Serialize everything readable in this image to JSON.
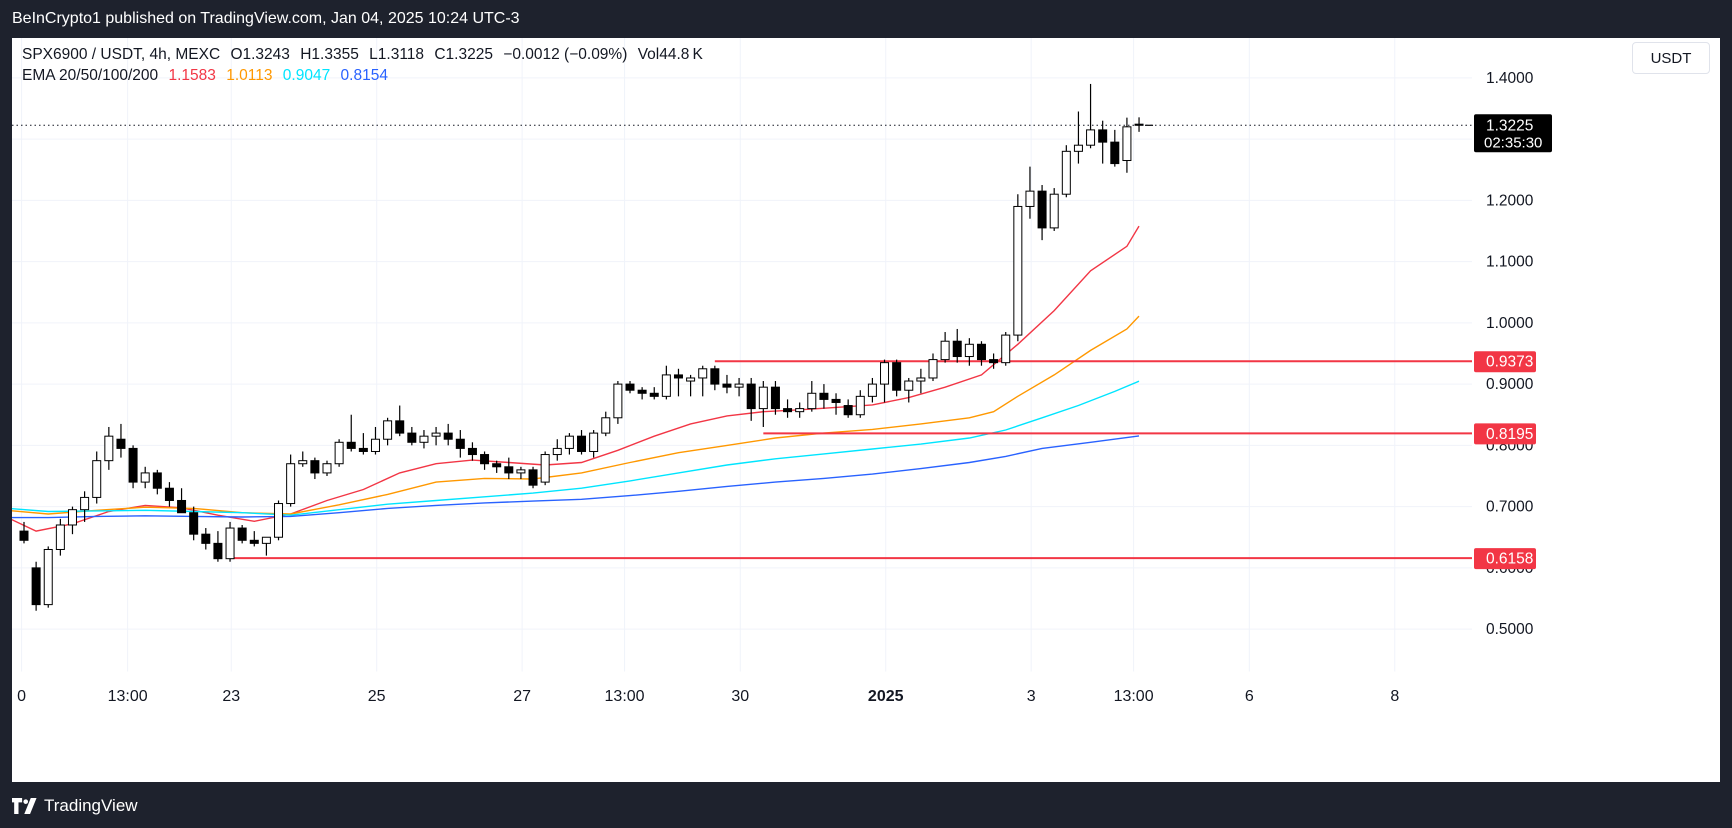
{
  "header": {
    "publish_text": "BeInCrypto1 published on TradingView.com, Jan 04, 2025 10:24 UTC-3"
  },
  "legend": {
    "symbol_line": "SPX6900 / USDT, 4h, MEXC",
    "open": "O1.3243",
    "high": "H1.3355",
    "low": "L1.3118",
    "close": "C1.3225",
    "change": "−0.0012 (−0.09%)",
    "volume": "Vol44.8 K",
    "ema_label": "EMA 20/50/100/200",
    "ema20": "1.1583",
    "ema50": "1.0113",
    "ema100": "0.9047",
    "ema200": "0.8154"
  },
  "unit_button": "USDT",
  "footer": {
    "brand": "TradingView"
  },
  "colors": {
    "ema20": "#f23645",
    "ema50": "#ff9800",
    "ema100": "#00e5ff",
    "ema200": "#2962ff",
    "level": "#f23645",
    "candle": "#000000"
  },
  "chart_data": {
    "type": "candlestick",
    "symbol": "SPX6900 / USDT",
    "timeframe": "4h",
    "ylim": [
      0.43,
      1.465
    ],
    "yticks": [
      {
        "value": 1.4,
        "label": "1.4000"
      },
      {
        "value": 1.3,
        "label": "1.3000"
      },
      {
        "value": 1.2,
        "label": "1.2000"
      },
      {
        "value": 1.1,
        "label": "1.1000"
      },
      {
        "value": 1.0,
        "label": "1.0000"
      },
      {
        "value": 0.9,
        "label": "0.9000"
      },
      {
        "value": 0.8,
        "label": "0.8000"
      },
      {
        "value": 0.7,
        "label": "0.7000"
      },
      {
        "value": 0.6,
        "label": "0.6000"
      },
      {
        "value": 0.5,
        "label": "0.5000"
      }
    ],
    "xticks": [
      {
        "index": -0.2,
        "label": "0",
        "bold": false
      },
      {
        "index": 8.55,
        "label": "13:00",
        "bold": false
      },
      {
        "index": 17.1,
        "label": "23",
        "bold": false
      },
      {
        "index": 29.1,
        "label": "25",
        "bold": false
      },
      {
        "index": 41.1,
        "label": "27",
        "bold": false
      },
      {
        "index": 49.55,
        "label": "13:00",
        "bold": false
      },
      {
        "index": 59.1,
        "label": "30",
        "bold": false
      },
      {
        "index": 71.1,
        "label": "2025",
        "bold": true
      },
      {
        "index": 83.1,
        "label": "3",
        "bold": false
      },
      {
        "index": 91.55,
        "label": "13:00",
        "bold": false
      },
      {
        "index": 101.1,
        "label": "6",
        "bold": false
      },
      {
        "index": 113.1,
        "label": "8",
        "bold": false
      }
    ],
    "last_price": {
      "value": 1.3225,
      "label": "1.3225",
      "countdown": "02:35:30"
    },
    "levels": [
      {
        "value": 0.9373,
        "label": "0.9373",
        "from_index": 57
      },
      {
        "value": 0.8195,
        "label": "0.8195",
        "from_index": 61
      },
      {
        "value": 0.6158,
        "label": "0.6158",
        "from_index": 17
      }
    ],
    "candles": [
      {
        "o": 0.66,
        "h": 0.675,
        "l": 0.64,
        "c": 0.645
      },
      {
        "o": 0.6,
        "h": 0.61,
        "l": 0.53,
        "c": 0.54
      },
      {
        "o": 0.54,
        "h": 0.635,
        "l": 0.535,
        "c": 0.63
      },
      {
        "o": 0.63,
        "h": 0.68,
        "l": 0.62,
        "c": 0.67
      },
      {
        "o": 0.67,
        "h": 0.7,
        "l": 0.655,
        "c": 0.695
      },
      {
        "o": 0.695,
        "h": 0.725,
        "l": 0.675,
        "c": 0.715
      },
      {
        "o": 0.715,
        "h": 0.79,
        "l": 0.705,
        "c": 0.775
      },
      {
        "o": 0.775,
        "h": 0.83,
        "l": 0.76,
        "c": 0.815
      },
      {
        "o": 0.81,
        "h": 0.835,
        "l": 0.78,
        "c": 0.795
      },
      {
        "o": 0.795,
        "h": 0.8,
        "l": 0.73,
        "c": 0.74
      },
      {
        "o": 0.74,
        "h": 0.765,
        "l": 0.73,
        "c": 0.755
      },
      {
        "o": 0.755,
        "h": 0.76,
        "l": 0.72,
        "c": 0.73
      },
      {
        "o": 0.73,
        "h": 0.74,
        "l": 0.7,
        "c": 0.71
      },
      {
        "o": 0.71,
        "h": 0.73,
        "l": 0.69,
        "c": 0.69
      },
      {
        "o": 0.69,
        "h": 0.7,
        "l": 0.645,
        "c": 0.655
      },
      {
        "o": 0.655,
        "h": 0.665,
        "l": 0.63,
        "c": 0.64
      },
      {
        "o": 0.64,
        "h": 0.66,
        "l": 0.61,
        "c": 0.615
      },
      {
        "o": 0.615,
        "h": 0.675,
        "l": 0.61,
        "c": 0.665
      },
      {
        "o": 0.665,
        "h": 0.67,
        "l": 0.64,
        "c": 0.645
      },
      {
        "o": 0.645,
        "h": 0.66,
        "l": 0.635,
        "c": 0.64
      },
      {
        "o": 0.64,
        "h": 0.65,
        "l": 0.62,
        "c": 0.65
      },
      {
        "o": 0.65,
        "h": 0.71,
        "l": 0.645,
        "c": 0.705
      },
      {
        "o": 0.705,
        "h": 0.785,
        "l": 0.7,
        "c": 0.77
      },
      {
        "o": 0.77,
        "h": 0.79,
        "l": 0.765,
        "c": 0.775
      },
      {
        "o": 0.775,
        "h": 0.78,
        "l": 0.745,
        "c": 0.755
      },
      {
        "o": 0.755,
        "h": 0.775,
        "l": 0.75,
        "c": 0.77
      },
      {
        "o": 0.77,
        "h": 0.81,
        "l": 0.765,
        "c": 0.805
      },
      {
        "o": 0.805,
        "h": 0.85,
        "l": 0.79,
        "c": 0.795
      },
      {
        "o": 0.795,
        "h": 0.82,
        "l": 0.785,
        "c": 0.79
      },
      {
        "o": 0.79,
        "h": 0.83,
        "l": 0.785,
        "c": 0.81
      },
      {
        "o": 0.81,
        "h": 0.845,
        "l": 0.8,
        "c": 0.84
      },
      {
        "o": 0.84,
        "h": 0.865,
        "l": 0.815,
        "c": 0.82
      },
      {
        "o": 0.82,
        "h": 0.83,
        "l": 0.8,
        "c": 0.805
      },
      {
        "o": 0.805,
        "h": 0.825,
        "l": 0.795,
        "c": 0.815
      },
      {
        "o": 0.815,
        "h": 0.83,
        "l": 0.8,
        "c": 0.82
      },
      {
        "o": 0.82,
        "h": 0.835,
        "l": 0.8,
        "c": 0.81
      },
      {
        "o": 0.81,
        "h": 0.825,
        "l": 0.78,
        "c": 0.795
      },
      {
        "o": 0.795,
        "h": 0.805,
        "l": 0.775,
        "c": 0.785
      },
      {
        "o": 0.785,
        "h": 0.79,
        "l": 0.76,
        "c": 0.77
      },
      {
        "o": 0.77,
        "h": 0.775,
        "l": 0.755,
        "c": 0.765
      },
      {
        "o": 0.765,
        "h": 0.78,
        "l": 0.745,
        "c": 0.755
      },
      {
        "o": 0.755,
        "h": 0.765,
        "l": 0.745,
        "c": 0.76
      },
      {
        "o": 0.76,
        "h": 0.765,
        "l": 0.73,
        "c": 0.735
      },
      {
        "o": 0.74,
        "h": 0.79,
        "l": 0.735,
        "c": 0.785
      },
      {
        "o": 0.785,
        "h": 0.81,
        "l": 0.775,
        "c": 0.795
      },
      {
        "o": 0.795,
        "h": 0.82,
        "l": 0.785,
        "c": 0.815
      },
      {
        "o": 0.815,
        "h": 0.825,
        "l": 0.785,
        "c": 0.79
      },
      {
        "o": 0.79,
        "h": 0.825,
        "l": 0.78,
        "c": 0.82
      },
      {
        "o": 0.82,
        "h": 0.855,
        "l": 0.815,
        "c": 0.845
      },
      {
        "o": 0.845,
        "h": 0.905,
        "l": 0.835,
        "c": 0.9
      },
      {
        "o": 0.9,
        "h": 0.905,
        "l": 0.885,
        "c": 0.89
      },
      {
        "o": 0.89,
        "h": 0.895,
        "l": 0.875,
        "c": 0.885
      },
      {
        "o": 0.885,
        "h": 0.895,
        "l": 0.875,
        "c": 0.88
      },
      {
        "o": 0.88,
        "h": 0.93,
        "l": 0.875,
        "c": 0.915
      },
      {
        "o": 0.915,
        "h": 0.925,
        "l": 0.88,
        "c": 0.91
      },
      {
        "o": 0.905,
        "h": 0.915,
        "l": 0.88,
        "c": 0.91
      },
      {
        "o": 0.91,
        "h": 0.93,
        "l": 0.88,
        "c": 0.925
      },
      {
        "o": 0.925,
        "h": 0.93,
        "l": 0.89,
        "c": 0.9
      },
      {
        "o": 0.9,
        "h": 0.915,
        "l": 0.885,
        "c": 0.895
      },
      {
        "o": 0.895,
        "h": 0.91,
        "l": 0.88,
        "c": 0.9
      },
      {
        "o": 0.9,
        "h": 0.91,
        "l": 0.84,
        "c": 0.86
      },
      {
        "o": 0.86,
        "h": 0.905,
        "l": 0.83,
        "c": 0.895
      },
      {
        "o": 0.895,
        "h": 0.905,
        "l": 0.85,
        "c": 0.86
      },
      {
        "o": 0.86,
        "h": 0.875,
        "l": 0.845,
        "c": 0.855
      },
      {
        "o": 0.855,
        "h": 0.87,
        "l": 0.845,
        "c": 0.86
      },
      {
        "o": 0.86,
        "h": 0.905,
        "l": 0.855,
        "c": 0.885
      },
      {
        "o": 0.885,
        "h": 0.9,
        "l": 0.86,
        "c": 0.875
      },
      {
        "o": 0.875,
        "h": 0.885,
        "l": 0.85,
        "c": 0.87
      },
      {
        "o": 0.865,
        "h": 0.875,
        "l": 0.845,
        "c": 0.85
      },
      {
        "o": 0.85,
        "h": 0.89,
        "l": 0.845,
        "c": 0.88
      },
      {
        "o": 0.88,
        "h": 0.91,
        "l": 0.87,
        "c": 0.9
      },
      {
        "o": 0.9,
        "h": 0.94,
        "l": 0.87,
        "c": 0.935
      },
      {
        "o": 0.935,
        "h": 0.94,
        "l": 0.88,
        "c": 0.89
      },
      {
        "o": 0.89,
        "h": 0.91,
        "l": 0.87,
        "c": 0.905
      },
      {
        "o": 0.905,
        "h": 0.925,
        "l": 0.885,
        "c": 0.91
      },
      {
        "o": 0.91,
        "h": 0.95,
        "l": 0.905,
        "c": 0.94
      },
      {
        "o": 0.94,
        "h": 0.985,
        "l": 0.935,
        "c": 0.97
      },
      {
        "o": 0.97,
        "h": 0.99,
        "l": 0.935,
        "c": 0.945
      },
      {
        "o": 0.945,
        "h": 0.975,
        "l": 0.93,
        "c": 0.965
      },
      {
        "o": 0.965,
        "h": 0.97,
        "l": 0.93,
        "c": 0.94
      },
      {
        "o": 0.94,
        "h": 0.95,
        "l": 0.925,
        "c": 0.935
      },
      {
        "o": 0.935,
        "h": 0.985,
        "l": 0.93,
        "c": 0.98
      },
      {
        "o": 0.98,
        "h": 1.21,
        "l": 0.97,
        "c": 1.19
      },
      {
        "o": 1.19,
        "h": 1.255,
        "l": 1.17,
        "c": 1.215
      },
      {
        "o": 1.215,
        "h": 1.225,
        "l": 1.135,
        "c": 1.155
      },
      {
        "o": 1.155,
        "h": 1.22,
        "l": 1.15,
        "c": 1.21
      },
      {
        "o": 1.21,
        "h": 1.29,
        "l": 1.205,
        "c": 1.28
      },
      {
        "o": 1.28,
        "h": 1.345,
        "l": 1.26,
        "c": 1.29
      },
      {
        "o": 1.29,
        "h": 1.39,
        "l": 1.285,
        "c": 1.315
      },
      {
        "o": 1.315,
        "h": 1.33,
        "l": 1.26,
        "c": 1.295
      },
      {
        "o": 1.295,
        "h": 1.315,
        "l": 1.255,
        "c": 1.26
      },
      {
        "o": 1.265,
        "h": 1.335,
        "l": 1.245,
        "c": 1.32
      },
      {
        "o": 1.3243,
        "h": 1.3355,
        "l": 1.3118,
        "c": 1.3225
      }
    ],
    "ema": [
      {
        "name": "EMA 20",
        "color": "#f23645",
        "points": [
          [
            -2,
            0.688
          ],
          [
            1,
            0.66
          ],
          [
            4,
            0.672
          ],
          [
            7,
            0.692
          ],
          [
            10,
            0.702
          ],
          [
            13,
            0.698
          ],
          [
            16,
            0.686
          ],
          [
            19,
            0.676
          ],
          [
            22,
            0.688
          ],
          [
            25,
            0.71
          ],
          [
            28,
            0.728
          ],
          [
            31,
            0.755
          ],
          [
            34,
            0.77
          ],
          [
            37,
            0.776
          ],
          [
            40,
            0.772
          ],
          [
            43,
            0.768
          ],
          [
            46,
            0.772
          ],
          [
            49,
            0.792
          ],
          [
            52,
            0.815
          ],
          [
            55,
            0.835
          ],
          [
            58,
            0.848
          ],
          [
            61,
            0.855
          ],
          [
            64,
            0.858
          ],
          [
            67,
            0.862
          ],
          [
            70,
            0.866
          ],
          [
            73,
            0.878
          ],
          [
            76,
            0.895
          ],
          [
            79,
            0.915
          ],
          [
            82,
            0.965
          ],
          [
            85,
            1.02
          ],
          [
            88,
            1.085
          ],
          [
            91,
            1.125
          ],
          [
            92,
            1.158
          ]
        ]
      },
      {
        "name": "EMA 50",
        "color": "#ff9800",
        "points": [
          [
            -2,
            0.695
          ],
          [
            2,
            0.688
          ],
          [
            6,
            0.694
          ],
          [
            10,
            0.699
          ],
          [
            14,
            0.697
          ],
          [
            18,
            0.69
          ],
          [
            22,
            0.688
          ],
          [
            26,
            0.703
          ],
          [
            30,
            0.72
          ],
          [
            34,
            0.74
          ],
          [
            38,
            0.746
          ],
          [
            42,
            0.745
          ],
          [
            46,
            0.755
          ],
          [
            50,
            0.772
          ],
          [
            54,
            0.788
          ],
          [
            58,
            0.8
          ],
          [
            62,
            0.812
          ],
          [
            66,
            0.82
          ],
          [
            70,
            0.826
          ],
          [
            74,
            0.835
          ],
          [
            78,
            0.845
          ],
          [
            80,
            0.855
          ],
          [
            82,
            0.88
          ],
          [
            85,
            0.915
          ],
          [
            88,
            0.955
          ],
          [
            91,
            0.99
          ],
          [
            92,
            1.011
          ]
        ]
      },
      {
        "name": "EMA 100",
        "color": "#00e5ff",
        "points": [
          [
            -2,
            0.698
          ],
          [
            2,
            0.692
          ],
          [
            6,
            0.693
          ],
          [
            10,
            0.694
          ],
          [
            14,
            0.692
          ],
          [
            18,
            0.69
          ],
          [
            22,
            0.686
          ],
          [
            26,
            0.695
          ],
          [
            30,
            0.704
          ],
          [
            34,
            0.71
          ],
          [
            38,
            0.716
          ],
          [
            42,
            0.722
          ],
          [
            46,
            0.73
          ],
          [
            50,
            0.742
          ],
          [
            54,
            0.755
          ],
          [
            58,
            0.768
          ],
          [
            62,
            0.778
          ],
          [
            66,
            0.786
          ],
          [
            70,
            0.794
          ],
          [
            74,
            0.802
          ],
          [
            78,
            0.812
          ],
          [
            81,
            0.825
          ],
          [
            84,
            0.845
          ],
          [
            87,
            0.865
          ],
          [
            90,
            0.888
          ],
          [
            92,
            0.9047
          ]
        ]
      },
      {
        "name": "EMA 200",
        "color": "#2962ff",
        "points": [
          [
            -2,
            0.682
          ],
          [
            2,
            0.682
          ],
          [
            6,
            0.684
          ],
          [
            10,
            0.685
          ],
          [
            14,
            0.684
          ],
          [
            18,
            0.683
          ],
          [
            22,
            0.684
          ],
          [
            26,
            0.69
          ],
          [
            30,
            0.697
          ],
          [
            34,
            0.702
          ],
          [
            38,
            0.706
          ],
          [
            42,
            0.709
          ],
          [
            46,
            0.712
          ],
          [
            50,
            0.718
          ],
          [
            54,
            0.725
          ],
          [
            58,
            0.733
          ],
          [
            62,
            0.74
          ],
          [
            66,
            0.746
          ],
          [
            70,
            0.753
          ],
          [
            74,
            0.762
          ],
          [
            78,
            0.772
          ],
          [
            81,
            0.782
          ],
          [
            84,
            0.795
          ],
          [
            88,
            0.805
          ],
          [
            92,
            0.8154
          ]
        ]
      }
    ]
  }
}
